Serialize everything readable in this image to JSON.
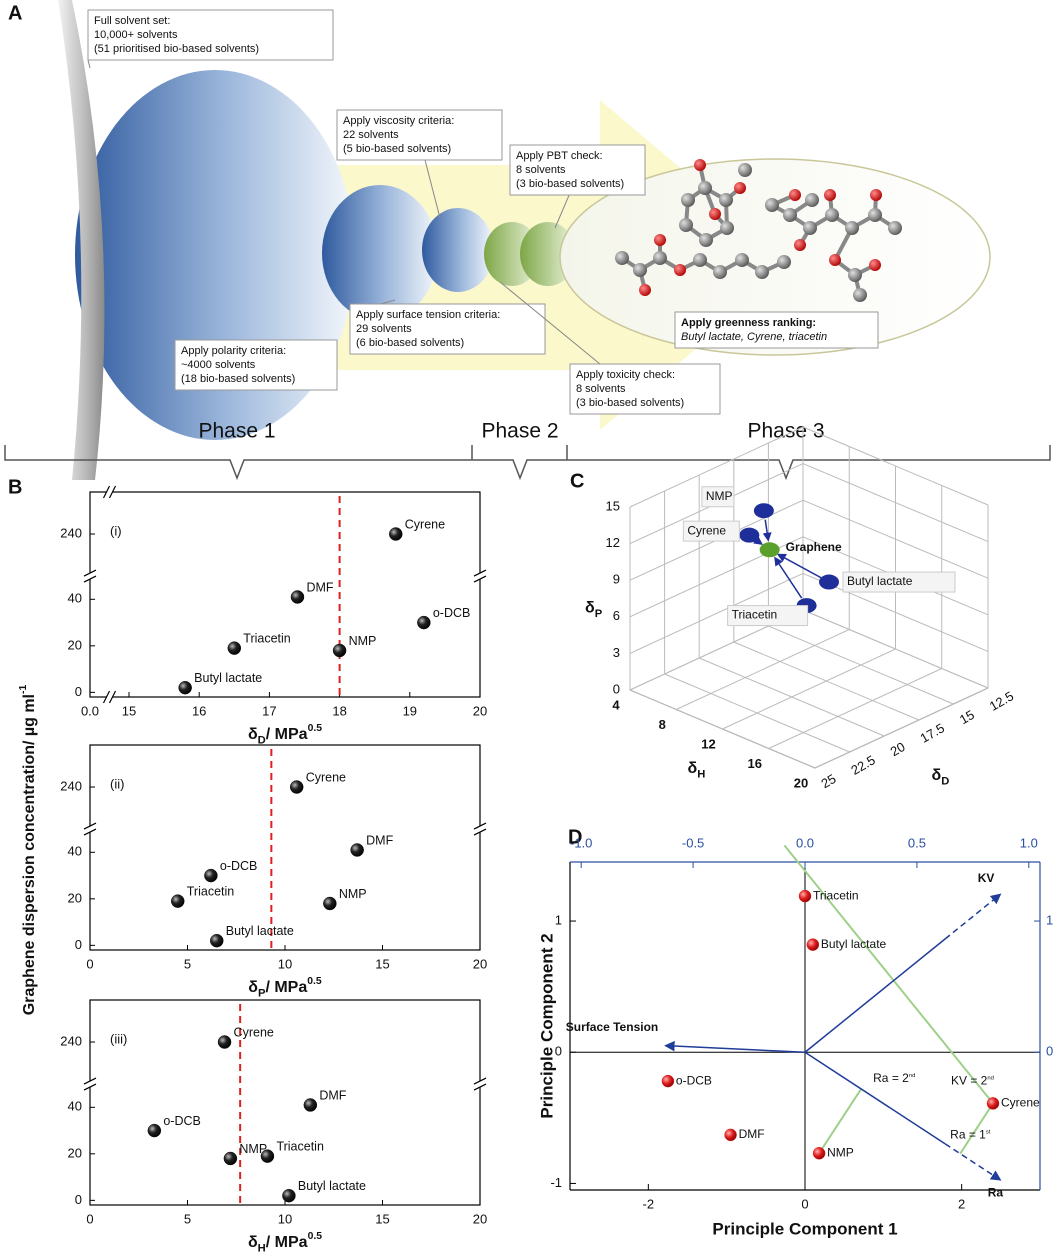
{
  "panel_A": {
    "label": "A",
    "callouts": [
      {
        "lines": [
          "Full solvent set:",
          "10,000+ solvents",
          "(51 prioritised bio-based solvents)"
        ]
      },
      {
        "lines": [
          "Apply viscosity criteria:",
          "22 solvents",
          "(5 bio-based solvents)"
        ]
      },
      {
        "lines": [
          "Apply PBT check:",
          "8 solvents",
          "(3 bio-based solvents)"
        ]
      },
      {
        "lines": [
          "Apply surface tension criteria:",
          "29 solvents",
          "(6 bio-based solvents)"
        ]
      },
      {
        "lines": [
          "Apply polarity criteria:",
          "~4000 solvents",
          "(18 bio-based solvents)"
        ]
      },
      {
        "lines": [
          "Apply greenness ranking:",
          "Butyl lactate, Cyrene, triacetin"
        ]
      },
      {
        "lines": [
          "Apply toxicity check:",
          "8 solvents",
          "(3 bio-based solvents)"
        ]
      }
    ],
    "phases": [
      "Phase 1",
      "Phase 2",
      "Phase 3"
    ]
  },
  "chart_data": [
    {
      "type": "scatter",
      "panel_label": "B",
      "subtitle": "(i)",
      "y_label": {
        "text": "Graphene dispersion concentration/ µg ml",
        "sup": "-1"
      },
      "x_label": {
        "symbol": "δ",
        "sub": "D",
        "text": "/ MPa",
        "sup": "0.5"
      },
      "labels": [
        "Cyrene",
        "DMF",
        "o-DCB",
        "Triacetin",
        "NMP",
        "Butyl lactate"
      ],
      "x": [
        18.8,
        17.4,
        19.2,
        16.5,
        18.0,
        15.8
      ],
      "y": [
        240,
        41,
        30,
        19,
        18,
        2
      ],
      "color": "#111111",
      "reference_line": 18,
      "xlim": [
        0,
        20
      ],
      "x_break": [
        0,
        15
      ],
      "xticks": [
        {
          "value": 0,
          "label": "0.0"
        },
        15,
        16,
        17,
        18,
        19,
        20
      ],
      "ylim": [
        -2,
        250
      ],
      "y_break": [
        50,
        230
      ],
      "yticks": [
        0,
        20,
        40,
        240
      ]
    },
    {
      "type": "scatter",
      "subtitle": "(ii)",
      "x_label": {
        "symbol": "δ",
        "sub": "P",
        "text": "/ MPa",
        "sup": "0.5"
      },
      "labels": [
        "Cyrene",
        "DMF",
        "o-DCB",
        "Triacetin",
        "NMP",
        "Butyl lactate"
      ],
      "x": [
        10.6,
        13.7,
        6.2,
        4.5,
        12.3,
        6.5
      ],
      "y": [
        240,
        41,
        30,
        19,
        18,
        2
      ],
      "color": "#111111",
      "reference_line": 9.3,
      "xlim": [
        0,
        20
      ],
      "xticks": [
        0,
        5,
        10,
        15,
        20
      ],
      "ylim": [
        -2,
        250
      ],
      "y_break": [
        50,
        230
      ],
      "yticks": [
        0,
        20,
        40,
        240
      ]
    },
    {
      "type": "scatter",
      "subtitle": "(iii)",
      "x_label": {
        "symbol": "δ",
        "sub": "H",
        "text": "/ MPa",
        "sup": "0.5"
      },
      "labels": [
        "Cyrene",
        "DMF",
        "o-DCB",
        "NMP",
        "Triacetin",
        "Butyl lactate"
      ],
      "x": [
        6.9,
        11.3,
        3.3,
        7.2,
        9.1,
        10.2
      ],
      "y": [
        240,
        41,
        30,
        18,
        19,
        2
      ],
      "color": "#111111",
      "reference_line": 7.7,
      "xlim": [
        0,
        20
      ],
      "xticks": [
        0,
        5,
        10,
        15,
        20
      ],
      "ylim": [
        -2,
        250
      ],
      "y_break": [
        50,
        230
      ],
      "yticks": [
        0,
        20,
        40,
        240
      ]
    },
    {
      "type": "scatter3d",
      "panel_label": "C",
      "labels": [
        "NMP",
        "Cyrene",
        "Graphene",
        "Butyl lactate",
        "Triacetin"
      ],
      "x": [
        7.2,
        6.9,
        7.7,
        10.2,
        9.1
      ],
      "y": [
        18.0,
        18.8,
        18.0,
        15.8,
        16.5
      ],
      "z": [
        12.3,
        10.6,
        9.3,
        6.5,
        4.5
      ],
      "colors": [
        "#1f2f99",
        "#1f2f99",
        "#5aa02c",
        "#1f2f99",
        "#1f2f99"
      ],
      "x_label": {
        "symbol": "δ",
        "sub": "H"
      },
      "y_label": {
        "symbol": "δ",
        "sub": "D"
      },
      "z_label": {
        "symbol": "δ",
        "sub": "P"
      },
      "xlim": [
        4,
        20
      ],
      "xticks": [
        4,
        8,
        12,
        16,
        20
      ],
      "ylim": [
        12.5,
        25
      ],
      "yticks": [
        12.5,
        15,
        17.5,
        20,
        22.5,
        25
      ],
      "zlim": [
        0,
        15
      ],
      "zticks": [
        0,
        3,
        6,
        9,
        12,
        15
      ]
    },
    {
      "type": "biplot",
      "panel_label": "D",
      "x_label": "Principle Component 1",
      "y_label": "Principle Component 2",
      "labels": [
        "Triacetin",
        "Butyl lactate",
        "o-DCB",
        "Cyrene",
        "DMF",
        "NMP"
      ],
      "x": [
        0.0,
        0.1,
        -1.75,
        2.4,
        -0.95,
        0.18
      ],
      "y": [
        1.19,
        0.82,
        -0.22,
        -0.39,
        -0.63,
        -0.77
      ],
      "color": "#e02020",
      "xlim": [
        -3,
        3
      ],
      "xticks": [
        -2,
        0,
        2
      ],
      "ylim": [
        -1.05,
        1.45
      ],
      "yticks": [
        -1,
        0,
        1
      ],
      "x2lim": [
        -1.05,
        1.05
      ],
      "x2ticks": [
        {
          "value": -1,
          "label": "-1.0"
        },
        -0.5,
        {
          "value": 0,
          "label": "0.0"
        },
        0.5,
        {
          "value": 1,
          "label": "1.0"
        }
      ],
      "y2lim": [
        -1.05,
        1.45
      ],
      "y2ticks": [
        0,
        1
      ],
      "loadings": {
        "names": [
          "KV",
          "Surface Tension",
          "Ra"
        ],
        "x": [
          0.87,
          -0.62,
          0.87
        ],
        "y": [
          1.2,
          0.05,
          -0.97
        ],
        "axis": "y2",
        "color": "#1f3d99"
      },
      "annotations": [
        {
          "text": "KV = 2",
          "sup": "nd"
        },
        {
          "text": "Ra = 1",
          "sup": "st"
        },
        {
          "text": "Ra = 2",
          "sup": "nd"
        }
      ]
    }
  ]
}
